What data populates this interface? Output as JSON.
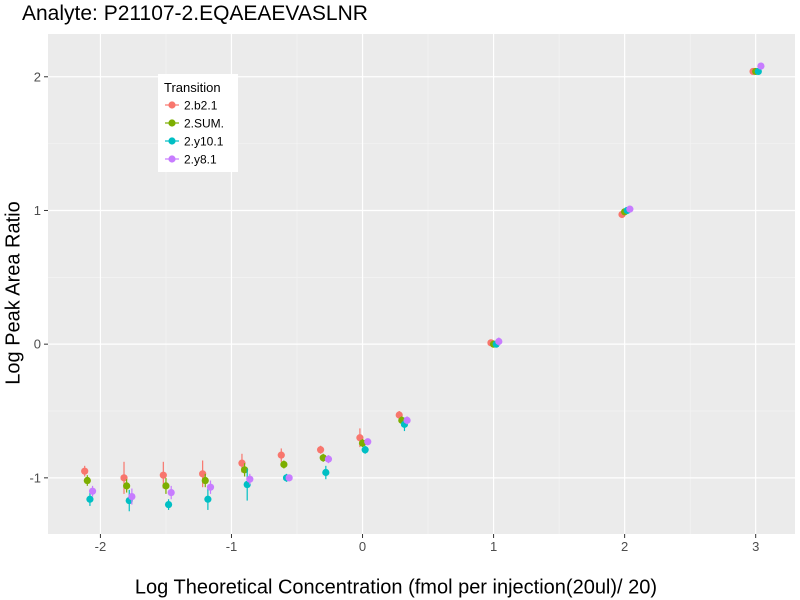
{
  "chart_data": {
    "type": "scatter",
    "title": "Analyte: P21107-2.EQAEAEVASLNR",
    "xlabel": "Log Theoretical Concentration (fmol per injection(20ul)/ 20)",
    "ylabel": "Log Peak Area Ratio",
    "xlim": [
      -2.4,
      3.3
    ],
    "ylim": [
      -1.42,
      2.32
    ],
    "x_ticks": [
      -2,
      -1,
      0,
      1,
      2,
      3
    ],
    "y_ticks": [
      -1,
      0,
      1,
      2
    ],
    "grid": true,
    "legend_title": "Transition",
    "legend_position": "top-left",
    "series": [
      {
        "name": "2.b2.1",
        "color": "#F8766D",
        "points": [
          {
            "x": -2.12,
            "y": -0.95,
            "err": 0.04
          },
          {
            "x": -1.82,
            "y": -1.0,
            "err": 0.12
          },
          {
            "x": -1.52,
            "y": -0.98,
            "err": 0.1
          },
          {
            "x": -1.22,
            "y": -0.97,
            "err": 0.1
          },
          {
            "x": -0.92,
            "y": -0.89,
            "err": 0.07
          },
          {
            "x": -0.62,
            "y": -0.83,
            "err": 0.05
          },
          {
            "x": -0.32,
            "y": -0.79,
            "err": 0.03
          },
          {
            "x": -0.02,
            "y": -0.7,
            "err": 0.07
          },
          {
            "x": 0.28,
            "y": -0.53,
            "err": 0.03
          },
          {
            "x": 0.98,
            "y": 0.01,
            "err": 0.0
          },
          {
            "x": 1.98,
            "y": 0.97,
            "err": 0.0
          },
          {
            "x": 2.98,
            "y": 2.04,
            "err": 0.0
          }
        ]
      },
      {
        "name": "2.SUM.",
        "color": "#7CAE00",
        "points": [
          {
            "x": -2.1,
            "y": -1.02,
            "err": 0.04
          },
          {
            "x": -1.8,
            "y": -1.06,
            "err": 0.05
          },
          {
            "x": -1.5,
            "y": -1.06,
            "err": 0.06
          },
          {
            "x": -1.2,
            "y": -1.02,
            "err": 0.05
          },
          {
            "x": -0.9,
            "y": -0.94,
            "err": 0.05
          },
          {
            "x": -0.6,
            "y": -0.9,
            "err": 0.03
          },
          {
            "x": -0.3,
            "y": -0.85,
            "err": 0.03
          },
          {
            "x": 0.0,
            "y": -0.74,
            "err": 0.03
          },
          {
            "x": 0.3,
            "y": -0.57,
            "err": 0.03
          },
          {
            "x": 1.0,
            "y": 0.0,
            "err": 0.0
          },
          {
            "x": 2.0,
            "y": 0.99,
            "err": 0.0
          },
          {
            "x": 3.0,
            "y": 2.04,
            "err": 0.0
          }
        ]
      },
      {
        "name": "2.y10.1",
        "color": "#00BFC4",
        "points": [
          {
            "x": -2.08,
            "y": -1.16,
            "err": 0.05
          },
          {
            "x": -1.78,
            "y": -1.17,
            "err": 0.08
          },
          {
            "x": -1.48,
            "y": -1.2,
            "err": 0.04
          },
          {
            "x": -1.18,
            "y": -1.16,
            "err": 0.08
          },
          {
            "x": -0.88,
            "y": -1.05,
            "err": 0.12
          },
          {
            "x": -0.58,
            "y": -1.0,
            "err": 0.03
          },
          {
            "x": -0.28,
            "y": -0.96,
            "err": 0.05
          },
          {
            "x": 0.02,
            "y": -0.79,
            "err": 0.03
          },
          {
            "x": 0.32,
            "y": -0.6,
            "err": 0.05
          },
          {
            "x": 1.02,
            "y": 0.0,
            "err": 0.0
          },
          {
            "x": 2.02,
            "y": 1.0,
            "err": 0.0
          },
          {
            "x": 3.02,
            "y": 2.04,
            "err": 0.0
          }
        ]
      },
      {
        "name": "2.y8.1",
        "color": "#C77CFF",
        "points": [
          {
            "x": -2.06,
            "y": -1.1,
            "err": 0.04
          },
          {
            "x": -1.76,
            "y": -1.14,
            "err": 0.06
          },
          {
            "x": -1.46,
            "y": -1.11,
            "err": 0.05
          },
          {
            "x": -1.16,
            "y": -1.07,
            "err": 0.05
          },
          {
            "x": -0.86,
            "y": -1.01,
            "err": 0.04
          },
          {
            "x": -0.56,
            "y": -1.0,
            "err": 0.02
          },
          {
            "x": -0.26,
            "y": -0.86,
            "err": 0.03
          },
          {
            "x": 0.04,
            "y": -0.73,
            "err": 0.02
          },
          {
            "x": 0.34,
            "y": -0.57,
            "err": 0.03
          },
          {
            "x": 1.04,
            "y": 0.02,
            "err": 0.03
          },
          {
            "x": 2.04,
            "y": 1.01,
            "err": 0.0
          },
          {
            "x": 3.04,
            "y": 2.08,
            "err": 0.0
          }
        ]
      }
    ]
  }
}
